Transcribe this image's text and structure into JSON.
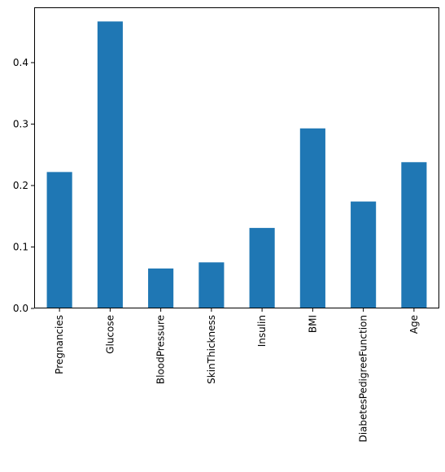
{
  "chart_data": {
    "type": "bar",
    "title": "",
    "xlabel": "",
    "ylabel": "",
    "categories": [
      "Pregnancies",
      "Glucose",
      "BloodPressure",
      "SkinThickness",
      "Insulin",
      "BMI",
      "DiabetesPedigreeFunction",
      "Age"
    ],
    "values": [
      0.222,
      0.467,
      0.065,
      0.075,
      0.131,
      0.293,
      0.174,
      0.238
    ],
    "ylim": [
      0,
      0.49
    ],
    "yticks": [
      0.0,
      0.1,
      0.2,
      0.3,
      0.4
    ],
    "ytick_labels": [
      "0.0",
      "0.1",
      "0.2",
      "0.3",
      "0.4"
    ],
    "bar_color": "#1f77b4",
    "grid": false,
    "legend": "none",
    "x_tick_rotation": "vertical"
  }
}
